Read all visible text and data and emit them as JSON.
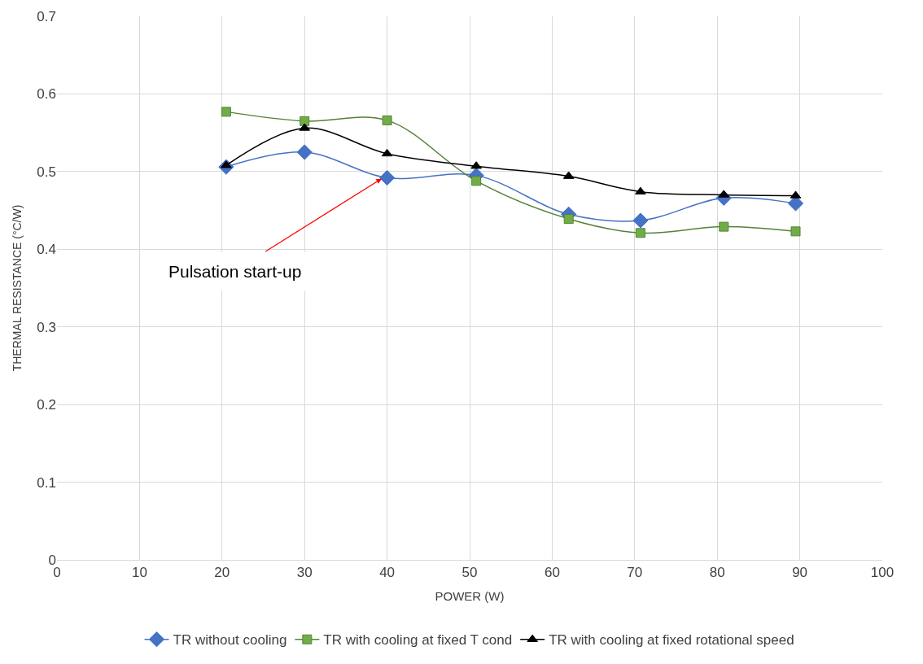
{
  "chart_data": {
    "type": "line",
    "xlabel": "POWER (W)",
    "ylabel": "THERMAL RESISTANCE (°C/W)",
    "xlim": [
      0,
      100
    ],
    "xticks": [
      0,
      10,
      20,
      30,
      40,
      50,
      60,
      70,
      80,
      90,
      100
    ],
    "ylim": [
      0,
      0.7
    ],
    "yticks": [
      0,
      0.1,
      0.2,
      0.3,
      0.4,
      0.5,
      0.6,
      0.7
    ],
    "x": [
      20.5,
      30,
      40,
      50.8,
      62,
      70.7,
      80.8,
      89.5
    ],
    "series": [
      {
        "name": "TR without cooling",
        "color": "#4472c4",
        "marker": "diamond",
        "values": [
          0.506,
          0.525,
          0.492,
          0.495,
          0.445,
          0.437,
          0.466,
          0.459
        ]
      },
      {
        "name": "TR with cooling at fixed T cond",
        "color": "#548235",
        "marker": "square",
        "values": [
          0.577,
          0.565,
          0.566,
          0.488,
          0.439,
          0.421,
          0.429,
          0.423
        ]
      },
      {
        "name": "TR with cooling at fixed rotational speed",
        "color": "#000000",
        "marker": "triangle",
        "values": [
          0.508,
          0.556,
          0.523,
          0.507,
          0.494,
          0.474,
          0.47,
          0.469
        ]
      }
    ],
    "annotations": [
      {
        "text": "Pulsation start-up",
        "x": 39.5,
        "y": 0.492
      }
    ],
    "grid": true,
    "legend": "bottom"
  }
}
